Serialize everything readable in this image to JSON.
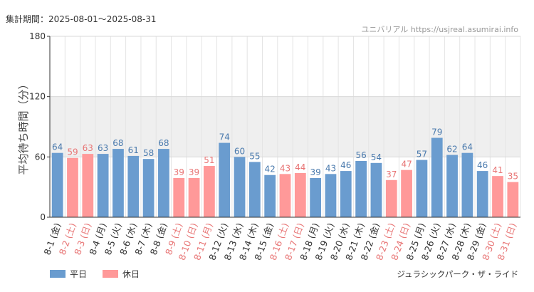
{
  "header": {
    "period_text": "集計期間：2025-08-01〜2025-08-31",
    "site_text": "ユニバリアル  https://usjreal.asumirai.info"
  },
  "footer": {
    "ride_name": "ジュラシックパーク・ザ・ライド"
  },
  "legend": {
    "weekday_label": "平日",
    "holiday_label": "休日"
  },
  "colors": {
    "weekday": "#6a9ccf",
    "holiday": "#ff9999",
    "weekday_text": "#4a7aad",
    "holiday_text": "#e87575",
    "band": "#efefef",
    "grid": "#e4e4e4"
  },
  "chart_data": {
    "type": "bar",
    "ylabel": "平均待ち時間（分）",
    "ylim": [
      0,
      180
    ],
    "yticks": [
      0,
      60,
      120,
      180
    ],
    "shaded_band": [
      60,
      120
    ],
    "categories": [
      "8-1 (金)",
      "8-2 (土)",
      "8-3 (日)",
      "8-4 (月)",
      "8-5 (火)",
      "8-6 (水)",
      "8-7 (木)",
      "8-8 (金)",
      "8-9 (土)",
      "8-10 (日)",
      "8-11 (月)",
      "8-12 (火)",
      "8-13 (水)",
      "8-14 (木)",
      "8-15 (金)",
      "8-16 (土)",
      "8-17 (日)",
      "8-18 (月)",
      "8-19 (火)",
      "8-20 (水)",
      "8-21 (木)",
      "8-22 (金)",
      "8-23 (土)",
      "8-24 (日)",
      "8-25 (月)",
      "8-26 (火)",
      "8-27 (水)",
      "8-28 (木)",
      "8-29 (金)",
      "8-30 (土)",
      "8-31 (日)"
    ],
    "values": [
      64,
      59,
      63,
      63,
      68,
      61,
      58,
      68,
      39,
      39,
      51,
      74,
      60,
      55,
      42,
      43,
      44,
      39,
      43,
      46,
      56,
      54,
      37,
      47,
      57,
      79,
      62,
      64,
      46,
      41,
      35
    ],
    "day_type": [
      "weekday",
      "holiday",
      "holiday",
      "weekday",
      "weekday",
      "weekday",
      "weekday",
      "weekday",
      "holiday",
      "holiday",
      "holiday",
      "weekday",
      "weekday",
      "weekday",
      "weekday",
      "holiday",
      "holiday",
      "weekday",
      "weekday",
      "weekday",
      "weekday",
      "weekday",
      "holiday",
      "holiday",
      "weekday",
      "weekday",
      "weekday",
      "weekday",
      "weekday",
      "holiday",
      "holiday"
    ]
  }
}
